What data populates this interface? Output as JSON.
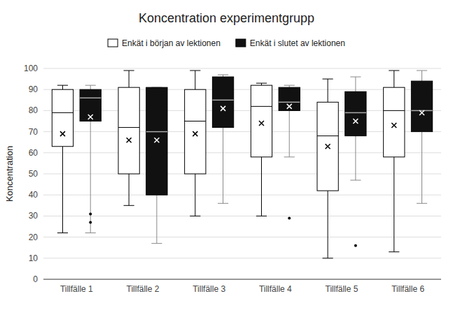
{
  "chart_data": {
    "type": "box",
    "title": "Koncentration experimentgrupp",
    "ylabel": "Koncentration",
    "categories": [
      "Tillfälle 1",
      "Tillfälle 2",
      "Tillfälle 3",
      "Tillfälle 4",
      "Tillfälle 5",
      "Tillfälle 6"
    ],
    "ylim": [
      0,
      100
    ],
    "yticks": [
      0,
      10,
      20,
      30,
      40,
      50,
      60,
      70,
      80,
      90,
      100
    ],
    "grid": true,
    "legend": "top",
    "series": [
      {
        "name": "Enkät i början av lektionen",
        "color": "#ffffff",
        "med": [
          79,
          72,
          75,
          82,
          68,
          80
        ],
        "q1": [
          63,
          50,
          50,
          58,
          42,
          58
        ],
        "q3": [
          90,
          91,
          90,
          92,
          84,
          91
        ],
        "whislo": [
          22,
          35,
          30,
          30,
          10,
          13
        ],
        "whishi": [
          92,
          99,
          99,
          93,
          95,
          99
        ],
        "mean": [
          69,
          66,
          69,
          74,
          63,
          73
        ],
        "fliers": [
          [],
          [],
          [],
          [],
          [],
          []
        ]
      },
      {
        "name": "Enkät i slutet av lektionen",
        "color": "#111111",
        "med": [
          86,
          70,
          85,
          84,
          79,
          80
        ],
        "q1": [
          75,
          40,
          72,
          80,
          68,
          70
        ],
        "q3": [
          90,
          91,
          96,
          91,
          89,
          94
        ],
        "whislo": [
          22,
          17,
          36,
          58,
          47,
          36
        ],
        "whishi": [
          92,
          91,
          97,
          92,
          96,
          99
        ],
        "mean": [
          77,
          66,
          81,
          82,
          75,
          79
        ],
        "fliers": [
          [
            27,
            31
          ],
          [],
          [],
          [
            29
          ],
          [
            16
          ],
          []
        ]
      }
    ]
  }
}
